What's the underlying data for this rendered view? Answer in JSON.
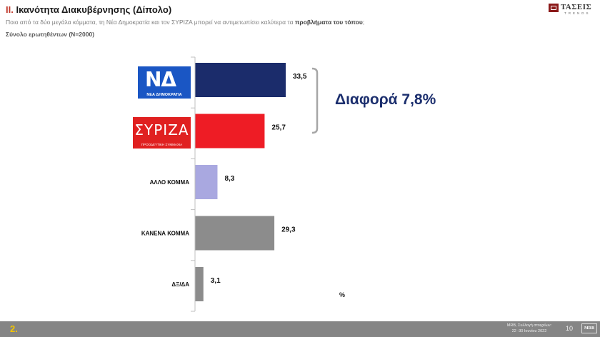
{
  "header": {
    "number": "II.",
    "title": "Ικανότητα Διακυβέρνησης (Δίπολο)",
    "question_prefix": "Ποιο από τα δύο μεγάλα κόμματα, τη Νέα Δημοκρατία και τον ΣΥΡΙΖΑ μπορεί να αντιμετωπίσει καλύτερα  τα ",
    "question_bold": "προβλήματα του τόπου",
    "question_suffix": ";",
    "sample": "Σύνολο ερωτηθέντων (Ν=2000)"
  },
  "brand": {
    "name": "ΤΑΣΕΙΣ",
    "tagline": "TRENDS"
  },
  "logos": {
    "nd": {
      "glyph": "ΝΔ",
      "name": "ΝΕΑ ΔΗΜΟΚΡΑΤΙΑ"
    },
    "syriza": {
      "glyph": "ΣΥΡΙΖΑ",
      "name": "ΠΡΟΟΔΕΥΤΙΚΗ ΣΥΜΜΑΧΙΑ"
    }
  },
  "annotation": {
    "difference": "Διαφορά 7,8%",
    "unit": "%"
  },
  "footer": {
    "slide_number": "2.",
    "source_line1": "MRB, Συλλογή στοιχείων:",
    "source_line2": "22 -30 Ιουνίου 2022",
    "page": "10",
    "logo": "MRB"
  },
  "chart_data": {
    "type": "bar",
    "orientation": "horizontal",
    "categories": [
      "ΝΕΑ ΔΗΜΟΚΡΑΤΙΑ",
      "ΣΥΡΙΖΑ",
      "ΑΛΛΟ ΚΟΜΜΑ",
      "ΚΑΝΕΝΑ ΚΟΜΜΑ",
      "ΔΞ/ΔΑ"
    ],
    "tick_labels": [
      "",
      "",
      "ΑΛΛΟ ΚΟΜΜΑ",
      "ΚΑΝΕΝΑ ΚΟΜΜΑ",
      "ΔΞ/ΔΑ"
    ],
    "values": [
      33.5,
      25.7,
      8.3,
      29.3,
      3.1
    ],
    "value_labels": [
      "33,5",
      "25,7",
      "8,3",
      "29,3",
      "3,1"
    ],
    "colors": [
      "#1b2c6b",
      "#ee1c25",
      "#a9a8e0",
      "#8c8c8c",
      "#8c8c8c"
    ],
    "xlim": [
      0,
      40
    ],
    "grid": false
  }
}
